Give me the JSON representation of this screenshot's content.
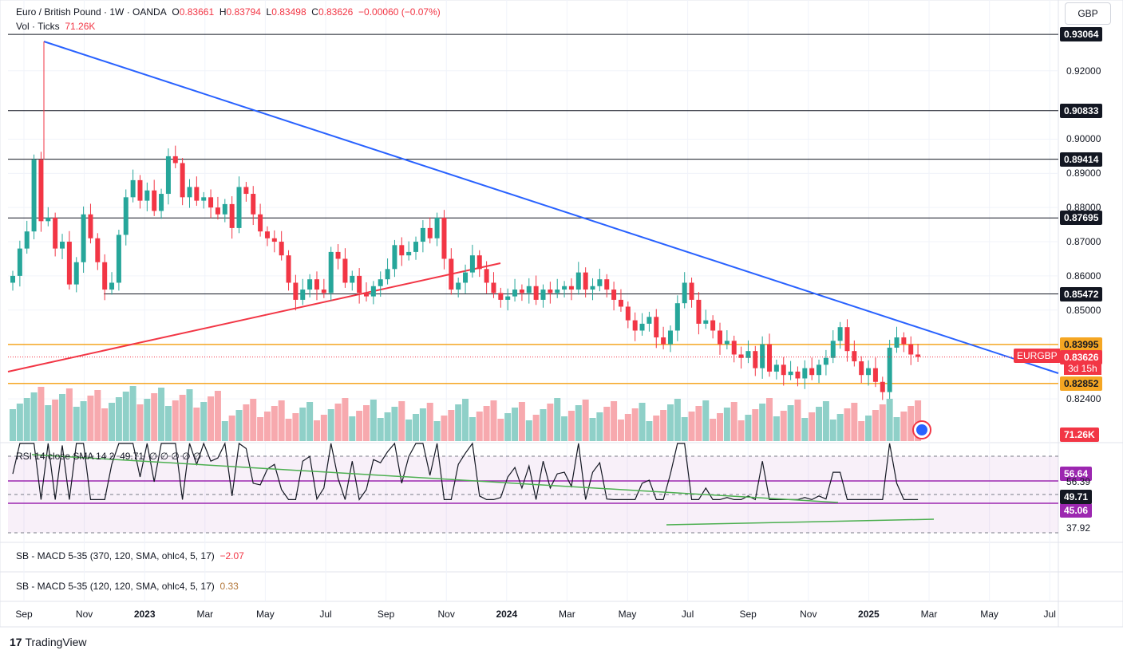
{
  "header": {
    "symbol": "Euro / British Pound · 1W · OANDA",
    "o_label": "O",
    "o": "0.83661",
    "h_label": "H",
    "h": "0.83794",
    "l_label": "L",
    "l": "0.83498",
    "c_label": "C",
    "c": "0.83626",
    "chg": "−0.00060 (−0.07%)",
    "vol_label": "Vol · Ticks",
    "vol": "71.26K"
  },
  "currency_button": "GBP",
  "indicators": {
    "rsi_label": "RSI 14 close SMA 14 2",
    "rsi_value": "49.71",
    "rsi_extra": "∅ ∅ ∅ ∅ ∅",
    "macd1_label": "SB - MACD 5-35 (370, 120, SMA, ohlc4, 5, 17)",
    "macd1_value": "−2.07",
    "macd2_label": "SB - MACD 5-35 (120, 120, SMA, ohlc4, 5, 17)",
    "macd2_value": "0.33"
  },
  "branding": {
    "logo_mark": "17",
    "name": "TradingView"
  },
  "colors": {
    "up": "#26a69a",
    "down": "#f23645",
    "trendline_blue": "#2962ff",
    "trendline_red": "#f23645",
    "support_orange": "#f5a623",
    "rsi_line": "#131722",
    "rsi_band": "#9c27b0",
    "rsi_trend": "#4caf50"
  },
  "chart_data": {
    "type": "candlestick",
    "symbol_tag": "EURGBP",
    "last_price": "0.83626",
    "countdown": "3d 15h",
    "volume_tag": "71.26K",
    "y_ticks": [
      "0.92000",
      "0.90000",
      "0.89000",
      "0.88000",
      "0.87000",
      "0.86000",
      "0.85000",
      "0.82400"
    ],
    "levels": [
      {
        "value": 0.93064,
        "label": "0.93064",
        "style": "black"
      },
      {
        "value": 0.90833,
        "label": "0.90833",
        "style": "black"
      },
      {
        "value": 0.89414,
        "label": "0.89414",
        "style": "black"
      },
      {
        "value": 0.87695,
        "label": "0.87695",
        "style": "black"
      },
      {
        "value": 0.85472,
        "label": "0.85472",
        "style": "black"
      },
      {
        "value": 0.83995,
        "label": "0.83995",
        "style": "orange"
      },
      {
        "value": 0.82852,
        "label": "0.82852",
        "style": "orange"
      }
    ],
    "x_labels": [
      {
        "label": "Sep",
        "bold": false
      },
      {
        "label": "Nov",
        "bold": false
      },
      {
        "label": "2023",
        "bold": true
      },
      {
        "label": "Mar",
        "bold": false
      },
      {
        "label": "May",
        "bold": false
      },
      {
        "label": "Jul",
        "bold": false
      },
      {
        "label": "Sep",
        "bold": false
      },
      {
        "label": "Nov",
        "bold": false
      },
      {
        "label": "2024",
        "bold": true
      },
      {
        "label": "Mar",
        "bold": false
      },
      {
        "label": "May",
        "bold": false
      },
      {
        "label": "Jul",
        "bold": false
      },
      {
        "label": "Sep",
        "bold": false
      },
      {
        "label": "Nov",
        "bold": false
      },
      {
        "label": "2025",
        "bold": true
      },
      {
        "label": "Mar",
        "bold": false
      },
      {
        "label": "May",
        "bold": false
      },
      {
        "label": "Jul",
        "bold": false
      }
    ],
    "closes": [
      0.86,
      0.868,
      0.873,
      0.894,
      0.876,
      0.877,
      0.868,
      0.87,
      0.8575,
      0.864,
      0.878,
      0.871,
      0.864,
      0.856,
      0.858,
      0.872,
      0.883,
      0.888,
      0.882,
      0.885,
      0.879,
      0.884,
      0.895,
      0.893,
      0.883,
      0.886,
      0.882,
      0.883,
      0.88,
      0.878,
      0.881,
      0.874,
      0.886,
      0.884,
      0.878,
      0.873,
      0.871,
      0.87,
      0.866,
      0.858,
      0.853,
      0.856,
      0.859,
      0.856,
      0.855,
      0.867,
      0.865,
      0.858,
      0.86,
      0.855,
      0.854,
      0.857,
      0.859,
      0.862,
      0.869,
      0.866,
      0.867,
      0.87,
      0.874,
      0.871,
      0.877,
      0.865,
      0.856,
      0.858,
      0.861,
      0.866,
      0.862,
      0.858,
      0.855,
      0.853,
      0.854,
      0.856,
      0.855,
      0.857,
      0.853,
      0.856,
      0.855,
      0.856,
      0.857,
      0.856,
      0.861,
      0.856,
      0.857,
      0.859,
      0.856,
      0.853,
      0.851,
      0.847,
      0.844,
      0.846,
      0.848,
      0.842,
      0.84,
      0.844,
      0.852,
      0.858,
      0.853,
      0.846,
      0.847,
      0.844,
      0.84,
      0.841,
      0.837,
      0.836,
      0.838,
      0.833,
      0.84,
      0.832,
      0.834,
      0.831,
      0.832,
      0.83,
      0.833,
      0.831,
      0.834,
      0.836,
      0.841,
      0.845,
      0.838,
      0.835,
      0.831,
      0.833,
      0.829,
      0.826,
      0.839,
      0.842,
      0.84,
      0.837,
      0.8363
    ],
    "rsi": {
      "levels": [
        {
          "value": 56.64,
          "label": "56.64"
        },
        {
          "value": 45.06,
          "label": "45.06"
        }
      ],
      "axis": [
        "56.39",
        "37.92"
      ],
      "current": 49.71
    }
  }
}
